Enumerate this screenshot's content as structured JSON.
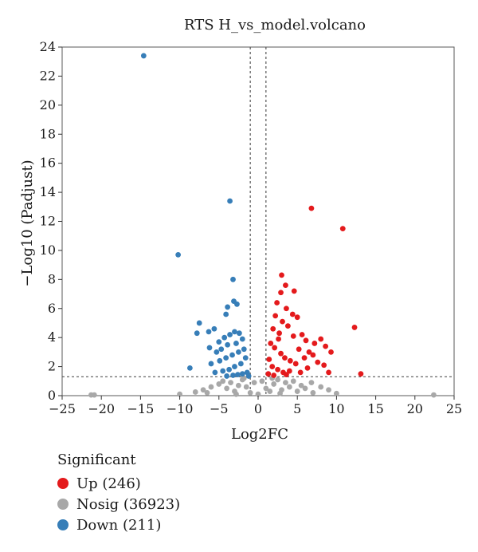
{
  "chart_data": {
    "type": "scatter",
    "title": "RTS H_vs_model.volcano",
    "xlabel": "Log2FC",
    "ylabel": "−Log10 (Padjust)",
    "xlim": [
      -25,
      25
    ],
    "ylim": [
      0,
      24
    ],
    "xticks": [
      -25,
      -20,
      -15,
      -10,
      -5,
      0,
      5,
      10,
      15,
      20,
      25
    ],
    "yticks": [
      0,
      2,
      4,
      6,
      8,
      10,
      12,
      14,
      16,
      18,
      20,
      22,
      24
    ],
    "grid": false,
    "threshold_lines": {
      "vertical": [
        -1,
        1
      ],
      "horizontal": 1.3
    },
    "legend": {
      "title": "Significant",
      "placement": "bottom-left",
      "entries": [
        {
          "label": "Up (246)",
          "color": "#e41a1c"
        },
        {
          "label": "Nosig (36923)",
          "color": "#a8a8a8"
        },
        {
          "label": "Down (211)",
          "color": "#377eb8"
        }
      ]
    },
    "series": [
      {
        "name": "Up (246)",
        "color": "#e41a1c",
        "points": [
          [
            6.8,
            12.9
          ],
          [
            10.8,
            11.5
          ],
          [
            12.3,
            4.7
          ],
          [
            13.1,
            1.5
          ],
          [
            3.0,
            8.3
          ],
          [
            3.5,
            7.6
          ],
          [
            2.9,
            7.1
          ],
          [
            4.6,
            7.2
          ],
          [
            2.4,
            6.4
          ],
          [
            3.6,
            6.0
          ],
          [
            4.4,
            5.6
          ],
          [
            5.0,
            5.4
          ],
          [
            2.2,
            5.5
          ],
          [
            3.1,
            5.1
          ],
          [
            1.9,
            4.6
          ],
          [
            2.7,
            4.3
          ],
          [
            3.8,
            4.8
          ],
          [
            4.5,
            4.1
          ],
          [
            5.6,
            4.2
          ],
          [
            6.1,
            3.8
          ],
          [
            7.2,
            3.6
          ],
          [
            8.0,
            3.9
          ],
          [
            8.6,
            3.4
          ],
          [
            9.3,
            3.0
          ],
          [
            6.5,
            3.0
          ],
          [
            5.2,
            3.2
          ],
          [
            1.6,
            3.6
          ],
          [
            2.1,
            3.3
          ],
          [
            2.9,
            2.9
          ],
          [
            3.4,
            2.6
          ],
          [
            4.1,
            2.4
          ],
          [
            4.8,
            2.2
          ],
          [
            1.4,
            2.5
          ],
          [
            1.8,
            2.0
          ],
          [
            2.5,
            1.8
          ],
          [
            3.2,
            1.6
          ],
          [
            4.0,
            1.7
          ],
          [
            5.4,
            1.6
          ],
          [
            6.3,
            1.9
          ],
          [
            7.6,
            2.3
          ],
          [
            1.3,
            1.5
          ],
          [
            2.0,
            1.4
          ],
          [
            3.6,
            1.45
          ],
          [
            5.9,
            2.6
          ],
          [
            7.0,
            2.8
          ],
          [
            8.4,
            2.1
          ],
          [
            9.0,
            1.6
          ],
          [
            2.6,
            3.9
          ]
        ]
      },
      {
        "name": "Nosig (36923)",
        "color": "#a8a8a8",
        "points": [
          [
            -21.3,
            0.05
          ],
          [
            -20.9,
            0.05
          ],
          [
            22.4,
            0.05
          ],
          [
            -10.0,
            0.1
          ],
          [
            -8.0,
            0.25
          ],
          [
            -7.0,
            0.4
          ],
          [
            -6.0,
            0.6
          ],
          [
            -5.0,
            0.8
          ],
          [
            -4.5,
            1.0
          ],
          [
            -4.0,
            0.5
          ],
          [
            -3.5,
            0.9
          ],
          [
            -3.0,
            0.3
          ],
          [
            -2.5,
            0.7
          ],
          [
            -2.0,
            1.1
          ],
          [
            -1.5,
            0.6
          ],
          [
            -1.0,
            0.2
          ],
          [
            -0.5,
            0.9
          ],
          [
            0.0,
            0.1
          ],
          [
            0.5,
            1.0
          ],
          [
            1.0,
            0.5
          ],
          [
            1.5,
            0.3
          ],
          [
            2.0,
            0.8
          ],
          [
            2.5,
            1.1
          ],
          [
            3.0,
            0.4
          ],
          [
            3.5,
            0.9
          ],
          [
            4.0,
            0.6
          ],
          [
            4.5,
            1.0
          ],
          [
            5.0,
            0.3
          ],
          [
            5.5,
            0.7
          ],
          [
            6.0,
            0.5
          ],
          [
            7.0,
            0.2
          ],
          [
            8.0,
            0.6
          ],
          [
            9.0,
            0.4
          ],
          [
            10.0,
            0.15
          ],
          [
            -2.8,
            0.1
          ],
          [
            2.8,
            0.15
          ],
          [
            -6.5,
            0.2
          ],
          [
            6.8,
            0.9
          ],
          [
            -1.8,
            1.2
          ],
          [
            1.8,
            1.2
          ]
        ]
      },
      {
        "name": "Down (211)",
        "color": "#377eb8",
        "points": [
          [
            -14.6,
            23.4
          ],
          [
            -3.6,
            13.4
          ],
          [
            -10.2,
            9.7
          ],
          [
            -3.2,
            8.0
          ],
          [
            -3.1,
            6.5
          ],
          [
            -2.7,
            6.3
          ],
          [
            -3.9,
            6.1
          ],
          [
            -4.1,
            5.6
          ],
          [
            -7.5,
            5.0
          ],
          [
            -7.8,
            4.3
          ],
          [
            -5.6,
            4.6
          ],
          [
            -6.3,
            4.4
          ],
          [
            -3.0,
            4.4
          ],
          [
            -2.4,
            4.3
          ],
          [
            -3.6,
            4.2
          ],
          [
            -4.3,
            4.0
          ],
          [
            -5.0,
            3.7
          ],
          [
            -2.0,
            3.9
          ],
          [
            -2.8,
            3.6
          ],
          [
            -3.9,
            3.5
          ],
          [
            -4.7,
            3.2
          ],
          [
            -5.3,
            3.0
          ],
          [
            -6.2,
            3.3
          ],
          [
            -1.8,
            3.2
          ],
          [
            -2.5,
            3.0
          ],
          [
            -3.3,
            2.8
          ],
          [
            -4.1,
            2.6
          ],
          [
            -4.9,
            2.4
          ],
          [
            -6.0,
            2.2
          ],
          [
            -8.7,
            1.9
          ],
          [
            -1.6,
            2.6
          ],
          [
            -2.2,
            2.2
          ],
          [
            -3.0,
            2.0
          ],
          [
            -3.7,
            1.8
          ],
          [
            -4.5,
            1.7
          ],
          [
            -5.5,
            1.6
          ],
          [
            -1.4,
            1.6
          ],
          [
            -2.0,
            1.5
          ],
          [
            -2.6,
            1.45
          ],
          [
            -3.2,
            1.4
          ],
          [
            -4.0,
            1.35
          ],
          [
            -1.2,
            1.35
          ]
        ]
      }
    ]
  }
}
